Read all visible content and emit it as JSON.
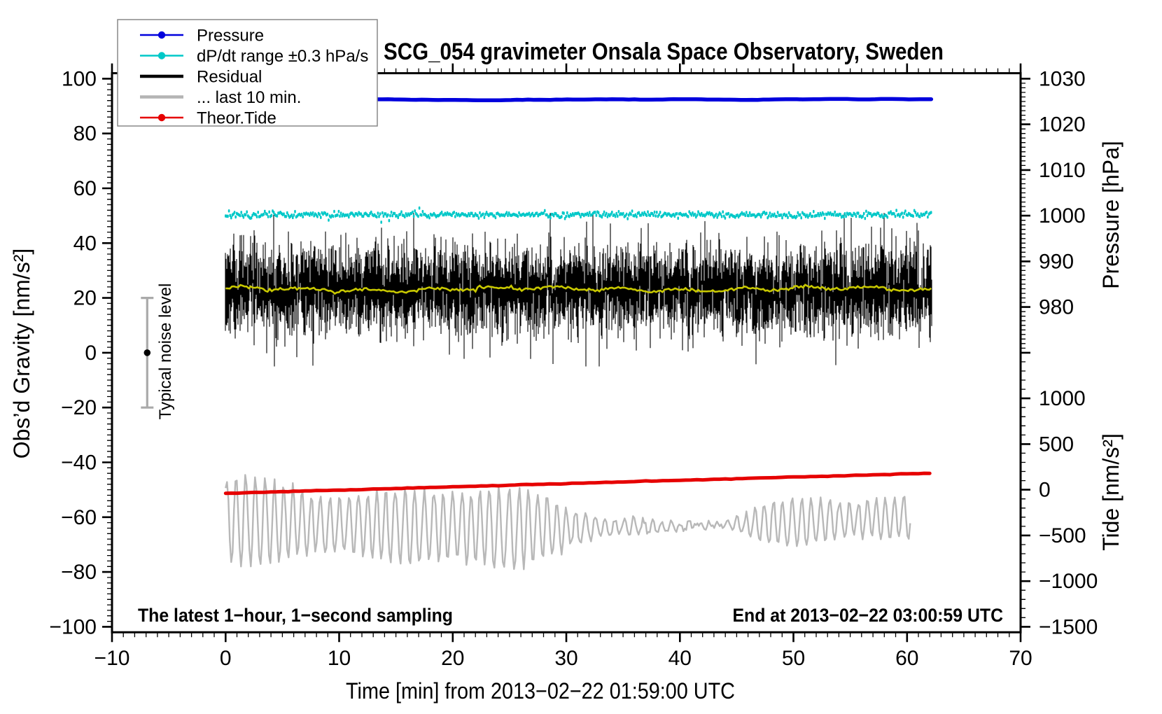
{
  "chart_data": {
    "type": "line",
    "title": "SCG_054 gravimeter Onsala Space Observatory, Sweden",
    "xlabel": "Time [min] from 2013−02−22 01:59:00 UTC",
    "ylabel_left": "Obs’d Gravity [nm/s²]",
    "ylabel_right_pressure": "Pressure [hPa]",
    "ylabel_right_tide": "Tide [nm/s²]",
    "annotation_bottom_left": "The latest 1−hour, 1−second sampling",
    "annotation_bottom_right": "End at 2013−02−22 03:00:59 UTC",
    "grid": false,
    "legend_position": "top-left",
    "axes": {
      "x": {
        "min": -10,
        "max": 70,
        "major_step": 10,
        "minor_step": 1,
        "tick_labels": [
          "−10",
          "0",
          "10",
          "20",
          "30",
          "40",
          "50",
          "60",
          "70"
        ],
        "tick_values": [
          -10,
          0,
          10,
          20,
          30,
          40,
          50,
          60,
          70
        ]
      },
      "gravity_left": {
        "min": -100,
        "max": 100,
        "major_step": 20,
        "minor_step": 2,
        "tick_labels": [
          "100",
          "80",
          "60",
          "40",
          "20",
          "0",
          "−20",
          "−40",
          "−60",
          "−80",
          "−100"
        ],
        "tick_values": [
          100,
          80,
          60,
          40,
          20,
          0,
          -20,
          -40,
          -60,
          -80,
          -100
        ]
      },
      "pressure_right": {
        "min": 970,
        "max": 1030,
        "major_step": 10,
        "minor_step": 1,
        "tick_labels": [
          "1030",
          "1020",
          "1010",
          "1000",
          "990",
          "980"
        ],
        "tick_values": [
          1030,
          1020,
          1010,
          1000,
          990,
          980
        ],
        "maps_to_gravity_range": [
          0,
          100
        ]
      },
      "tide_right": {
        "min": -1500,
        "max": 1500,
        "major_step": 500,
        "minor_step": 100,
        "tick_labels": [
          "1000",
          "500",
          "0",
          "−500",
          "−1000",
          "−1500"
        ],
        "tick_values": [
          1000,
          500,
          0,
          -500,
          -1000,
          -1500
        ],
        "maps_to_gravity_range": [
          -100,
          0
        ]
      }
    },
    "legend": {
      "items": [
        {
          "label": "Pressure",
          "color": "#0000dd",
          "marker": "dot",
          "line_width": 2.5
        },
        {
          "label": "dP/dt range ±0.3 hPa/s",
          "color": "#00c8c8",
          "marker": "dot",
          "line_width": 2.5
        },
        {
          "label": "Residual",
          "color": "#000000",
          "marker": "none",
          "line_width": 4.5
        },
        {
          "label": "... last 10 min.",
          "color": "#b4b4b4",
          "marker": "none",
          "line_width": 4.5
        },
        {
          "label": "Theor.Tide",
          "color": "#e60000",
          "marker": "dot",
          "line_width": 2.5
        }
      ]
    },
    "series": [
      {
        "name": "Pressure",
        "axis": "pressure_right",
        "color": "#0000dd",
        "style": "thick_line",
        "t_range_min": [
          0,
          62.2
        ],
        "mean_value_hPa": 1025.4,
        "note": "nearly constant thick blue line"
      },
      {
        "name": "dP/dt range ±0.3 hPa/s",
        "axis": "pressure_right",
        "color": "#00c8c8",
        "style": "dot_band",
        "t_range_min": [
          0,
          62.2
        ],
        "center_value_hPa": 1000.2,
        "band_halfwidth_hPa": 0.5,
        "note": "dense cyan dot band centered on 1000 hPa line (dP/dt = 0)"
      },
      {
        "name": "Residual",
        "axis": "gravity_left",
        "color": "#000000",
        "style": "noise_band",
        "t_range_min": [
          0,
          62.2
        ],
        "mean_nm_s2": 23,
        "typical_sigma_nm_s2": 8,
        "spike_extent_nm_s2": 28
      },
      {
        "name": "Residual smoothed (not in legend)",
        "axis": "gravity_left",
        "color": "#c8c800",
        "style": "wiggly_line",
        "t_range_min": [
          0,
          62.2
        ],
        "mean_nm_s2": 23.2,
        "wiggle_amp_nm_s2": 1
      },
      {
        "name": "... last 10 min.",
        "axis": "gravity_left",
        "color": "#b8b8b8",
        "style": "oscillation",
        "t_range_min": [
          0,
          60.3
        ],
        "mean_nm_s2": -61,
        "amplitude_range_nm_s2": [
          5,
          18
        ],
        "min_nm_s2": -80,
        "max_nm_s2": -43,
        "note": "last 10 minutes of residual stretched across axis"
      },
      {
        "name": "Theor.Tide",
        "axis": "tide_right",
        "color": "#e60000",
        "style": "thick_line",
        "t_range_min": [
          0,
          62.3
        ],
        "start_value_tide": -39,
        "end_value_tide": 182,
        "note": "slowly rising red line"
      }
    ],
    "noise_bar": {
      "label": "Typical noise level",
      "t_position_min": -6.9,
      "center_nm_s2": 0,
      "half_range_nm_s2": 20,
      "bar_color": "#aaaaaa",
      "dot_color": "#000000"
    }
  }
}
